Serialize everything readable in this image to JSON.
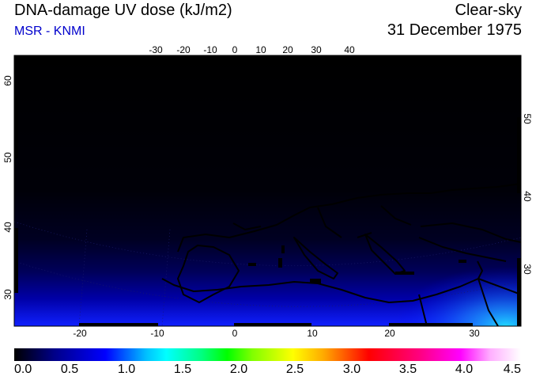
{
  "header": {
    "title": "DNA-damage UV dose (kJ/m2)",
    "source": "MSR - KNMI",
    "sky_condition": "Clear-sky",
    "date": "31 December 1975"
  },
  "map": {
    "top_lon_labels": [
      "-30",
      "-20",
      "-10",
      "0",
      "10",
      "20",
      "30",
      "40"
    ],
    "bottom_lon_labels": [
      "-20",
      "-10",
      "0",
      "10",
      "20",
      "30"
    ],
    "left_lat_labels": [
      "60",
      "50",
      "40",
      "30"
    ],
    "right_lat_labels": [
      "50",
      "40",
      "30"
    ],
    "background_color": "#000000",
    "coast_color": "#000000"
  },
  "colorbar": {
    "ticks": [
      "0.0",
      "0.5",
      "1.0",
      "1.5",
      "2.0",
      "2.5",
      "3.0",
      "3.5",
      "4.0",
      "4.5"
    ],
    "min": 0.0,
    "max": 4.5
  }
}
